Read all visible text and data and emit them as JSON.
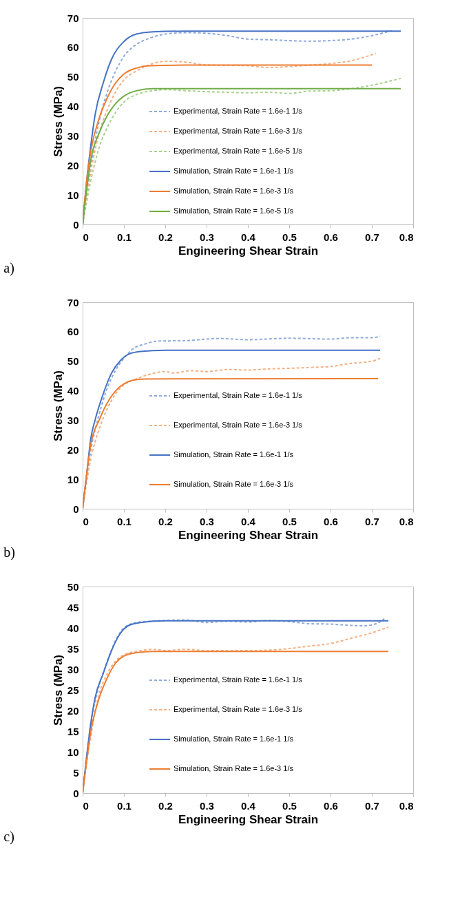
{
  "chart_data": [
    {
      "type": "line",
      "xlabel": "Engineering Shear Strain",
      "ylabel": "Stress (MPa)",
      "annotations": [
        "a)"
      ],
      "xlim": [
        0,
        0.8
      ],
      "xticks": [
        0,
        0.1,
        0.2,
        0.3,
        0.4,
        0.5,
        0.6,
        0.7,
        0.8
      ],
      "ylim": [
        0,
        70
      ],
      "yticks": [
        0,
        10,
        20,
        30,
        40,
        50,
        60,
        70
      ],
      "grid": false,
      "legend": "bottom",
      "marker": "none",
      "series": [
        {
          "name": "Experimental, Strain Rate = 1.6e-1 1/s",
          "color": "#8faadc",
          "line_style": "dashed",
          "x": [
            0,
            0.02,
            0.04,
            0.06,
            0.08,
            0.1,
            0.13,
            0.16,
            0.2,
            0.25,
            0.3,
            0.35,
            0.4,
            0.45,
            0.5,
            0.55,
            0.6,
            0.65,
            0.7,
            0.75
          ],
          "values": [
            0,
            20,
            35,
            45,
            52,
            57,
            61,
            63,
            64.5,
            65,
            64.8,
            64,
            62.8,
            62.6,
            62.3,
            62.1,
            62.3,
            62.8,
            64,
            65.7
          ]
        },
        {
          "name": "Experimental, Strain Rate = 1.6e-3 1/s",
          "color": "#f4b183",
          "line_style": "dashed",
          "x": [
            0,
            0.02,
            0.04,
            0.06,
            0.08,
            0.1,
            0.13,
            0.16,
            0.2,
            0.25,
            0.3,
            0.4,
            0.45,
            0.5,
            0.55,
            0.6,
            0.65,
            0.7,
            0.71
          ],
          "values": [
            0,
            18,
            31,
            39,
            45,
            49,
            52,
            54,
            55.3,
            55,
            54,
            53.8,
            53.2,
            53.5,
            54,
            54.5,
            55.5,
            57.5,
            58
          ]
        },
        {
          "name": "Experimental, Strain Rate = 1.6e-5 1/s",
          "color": "#a9d18e",
          "line_style": "dashed",
          "x": [
            0,
            0.02,
            0.04,
            0.06,
            0.08,
            0.1,
            0.13,
            0.17,
            0.2,
            0.25,
            0.3,
            0.35,
            0.4,
            0.45,
            0.5,
            0.55,
            0.6,
            0.65,
            0.7,
            0.77
          ],
          "values": [
            0,
            15,
            26,
            33,
            38,
            41.5,
            44,
            45.3,
            45.7,
            45.3,
            45,
            44.8,
            44.6,
            44.8,
            44.4,
            45.2,
            45.3,
            46,
            47.2,
            49.5
          ]
        },
        {
          "name": "Simulation, Strain Rate = 1.6e-1 1/s",
          "color": "#4472c4",
          "line_style": "solid",
          "x": [
            0,
            0.01,
            0.02,
            0.03,
            0.05,
            0.07,
            0.1,
            0.13,
            0.17,
            0.25,
            0.5,
            0.77
          ],
          "values": [
            0,
            15,
            27,
            37,
            48,
            56,
            62,
            64.5,
            65.3,
            65.5,
            65.5,
            65.5
          ]
        },
        {
          "name": "Simulation, Strain Rate = 1.6e-3 1/s",
          "color": "#ed7d31",
          "line_style": "solid",
          "x": [
            0,
            0.01,
            0.02,
            0.04,
            0.06,
            0.08,
            0.1,
            0.13,
            0.16,
            0.25,
            0.7
          ],
          "values": [
            0,
            15,
            25,
            36,
            43,
            48,
            51,
            53,
            53.8,
            54,
            54
          ]
        },
        {
          "name": "Simulation, Strain Rate = 1.6e-5 1/s",
          "color": "#70ad47",
          "line_style": "solid",
          "x": [
            0,
            0.01,
            0.02,
            0.04,
            0.06,
            0.08,
            0.1,
            0.13,
            0.17,
            0.3,
            0.77
          ],
          "values": [
            0,
            12,
            22,
            31,
            37,
            41,
            43.5,
            45.3,
            46,
            46,
            46
          ]
        }
      ]
    },
    {
      "type": "line",
      "xlabel": "Engineering Shear Strain",
      "ylabel": "Stress (MPa)",
      "annotations": [
        "b)"
      ],
      "xlim": [
        0,
        0.8
      ],
      "xticks": [
        0,
        0.1,
        0.2,
        0.3,
        0.4,
        0.5,
        0.6,
        0.7,
        0.8
      ],
      "ylim": [
        0,
        70
      ],
      "yticks": [
        0,
        10,
        20,
        30,
        40,
        50,
        60,
        70
      ],
      "grid": false,
      "legend": "bottom",
      "marker": "none",
      "series": [
        {
          "name": "Experimental, Strain Rate = 1.6e-1 1/s",
          "color": "#8faadc",
          "line_style": "dashed",
          "x": [
            0,
            0.02,
            0.04,
            0.06,
            0.08,
            0.1,
            0.12,
            0.15,
            0.18,
            0.25,
            0.33,
            0.4,
            0.5,
            0.6,
            0.65,
            0.7,
            0.72
          ],
          "values": [
            0,
            20,
            32,
            41,
            47,
            51,
            54,
            55.8,
            56.8,
            57,
            57.7,
            57.3,
            57.8,
            57.5,
            58,
            58,
            58.5
          ]
        },
        {
          "name": "Experimental, Strain Rate = 1.6e-3 1/s",
          "color": "#f4b183",
          "line_style": "dashed",
          "x": [
            0,
            0.02,
            0.04,
            0.06,
            0.08,
            0.1,
            0.13,
            0.16,
            0.2,
            0.22,
            0.26,
            0.3,
            0.35,
            0.4,
            0.45,
            0.5,
            0.55,
            0.6,
            0.65,
            0.7,
            0.72
          ],
          "values": [
            0,
            17,
            27,
            34,
            39,
            42,
            44,
            45.5,
            46.5,
            46,
            46.8,
            46.5,
            47.2,
            47,
            47.4,
            47.6,
            47.9,
            48.2,
            49.3,
            50,
            51
          ]
        },
        {
          "name": "Simulation, Strain Rate = 1.6e-1 1/s",
          "color": "#4472c4",
          "line_style": "solid",
          "x": [
            0,
            0.01,
            0.02,
            0.03,
            0.05,
            0.07,
            0.09,
            0.11,
            0.14,
            0.2,
            0.72
          ],
          "values": [
            0,
            12,
            24,
            30,
            39,
            46,
            50,
            52.3,
            53.3,
            53.7,
            53.7
          ]
        },
        {
          "name": "Simulation, Strain Rate = 1.6e-3 1/s",
          "color": "#ed7d31",
          "line_style": "solid",
          "x": [
            0,
            0.01,
            0.02,
            0.04,
            0.06,
            0.08,
            0.1,
            0.12,
            0.15,
            0.715
          ],
          "values": [
            0,
            12,
            22,
            30,
            36,
            40,
            42.3,
            43.5,
            44,
            44.1
          ]
        }
      ]
    },
    {
      "type": "line",
      "xlabel": "Engineering Shear Strain",
      "ylabel": "Stress (MPa)",
      "annotations": [
        "c)"
      ],
      "xlim": [
        0,
        0.8
      ],
      "xticks": [
        0,
        0.1,
        0.2,
        0.3,
        0.4,
        0.5,
        0.6,
        0.7,
        0.8
      ],
      "ylim": [
        0,
        50
      ],
      "yticks": [
        0,
        5,
        10,
        15,
        20,
        25,
        30,
        35,
        40,
        45,
        50
      ],
      "grid": false,
      "legend": "bottom",
      "marker": "none",
      "series": [
        {
          "name": "Experimental, Strain Rate = 1.6e-1 1/s",
          "color": "#8faadc",
          "line_style": "dashed",
          "x": [
            0,
            0.02,
            0.04,
            0.06,
            0.08,
            0.1,
            0.13,
            0.2,
            0.25,
            0.3,
            0.35,
            0.4,
            0.45,
            0.5,
            0.55,
            0.6,
            0.65,
            0.68,
            0.71,
            0.73
          ],
          "values": [
            0,
            17,
            26,
            32,
            37,
            40,
            41.3,
            41.8,
            41.9,
            41.3,
            41.6,
            41.4,
            41.8,
            41.5,
            41,
            40.9,
            40.6,
            40.5,
            41,
            42.2
          ]
        },
        {
          "name": "Experimental, Strain Rate = 1.6e-3 1/s",
          "color": "#f4b183",
          "line_style": "dashed",
          "x": [
            0,
            0.02,
            0.04,
            0.06,
            0.08,
            0.1,
            0.13,
            0.17,
            0.2,
            0.25,
            0.3,
            0.4,
            0.47,
            0.5,
            0.55,
            0.6,
            0.65,
            0.7,
            0.74
          ],
          "values": [
            0,
            14,
            24,
            29,
            32,
            33.5,
            34.3,
            34.8,
            34.5,
            34.8,
            34.5,
            34.5,
            34.7,
            35,
            35.6,
            36.2,
            37.5,
            38.8,
            40.2
          ]
        },
        {
          "name": "Simulation, Strain Rate = 1.6e-1 1/s",
          "color": "#4472c4",
          "line_style": "solid",
          "x": [
            0,
            0.01,
            0.02,
            0.03,
            0.05,
            0.07,
            0.09,
            0.11,
            0.14,
            0.2,
            0.74
          ],
          "values": [
            0,
            9,
            17,
            23,
            29,
            34.5,
            38.5,
            40.5,
            41.3,
            41.7,
            41.7
          ]
        },
        {
          "name": "Simulation, Strain Rate = 1.6e-3 1/s",
          "color": "#ed7d31",
          "line_style": "solid",
          "x": [
            0,
            0.01,
            0.02,
            0.04,
            0.06,
            0.08,
            0.1,
            0.13,
            0.17,
            0.74
          ],
          "values": [
            0,
            8,
            15,
            23,
            28,
            31.5,
            33.2,
            34,
            34.3,
            34.3
          ]
        }
      ]
    }
  ]
}
